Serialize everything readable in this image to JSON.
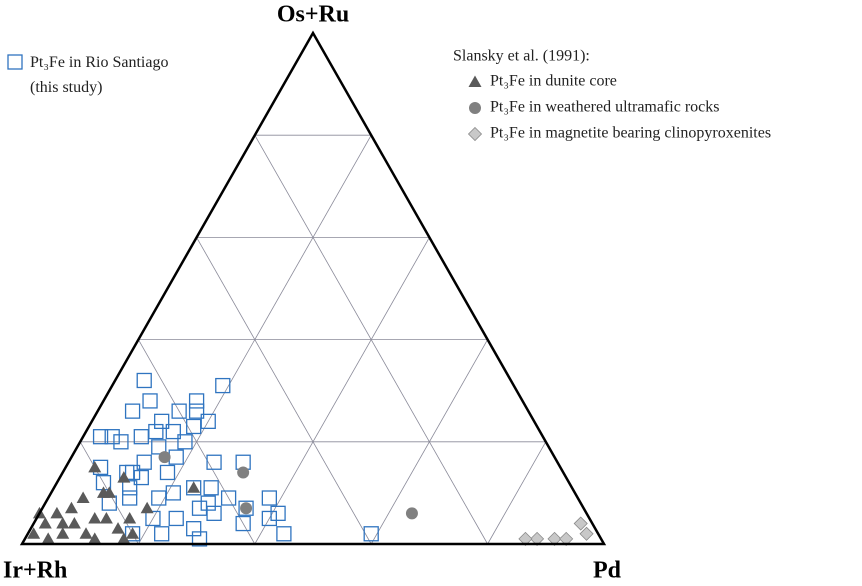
{
  "chart_data": {
    "type": "ternary",
    "vertices": {
      "top": "Os+Ru",
      "left": "Ir+Rh",
      "right": "Pd"
    },
    "lim": [
      0,
      100
    ],
    "grid_ticks": [
      20,
      40,
      60,
      80
    ],
    "grid": true,
    "legend_title": "Slansky et al. (1991):",
    "series": [
      {
        "name": "Pt₃Fe in Rio Santiago (this study)",
        "marker": "square",
        "color": "#2f74c0",
        "ir_rh": [
          50,
          63,
          56,
          57,
          60,
          64,
          68,
          56,
          63,
          66,
          69,
          73,
          76,
          74,
          59,
          67,
          59,
          54,
          65,
          74,
          79,
          75,
          73,
          68,
          53,
          65,
          62,
          64,
          66,
          58,
          53,
          55,
          60,
          72,
          77,
          81,
          75,
          71,
          69,
          80,
          75,
          69,
          54,
          39,
          60,
          64,
          80,
          76,
          69,
          71,
          64,
          62
        ],
        "os_ru": [
          31,
          32,
          28,
          26,
          26,
          28,
          26,
          24,
          22,
          22,
          21,
          20,
          21,
          21,
          23,
          19,
          16,
          16,
          17,
          14,
          15,
          14,
          13,
          14,
          9,
          11,
          11,
          6,
          7,
          7,
          6,
          5,
          4,
          9,
          9,
          8,
          5,
          5,
          3,
          2,
          2,
          1,
          2,
          2,
          9,
          8,
          12,
          11,
          10,
          16,
          24,
          20
        ],
        "pd": [
          19,
          5,
          16,
          17,
          14,
          8,
          6,
          20,
          15,
          12,
          10,
          7,
          3,
          5,
          18,
          14,
          25,
          30,
          18,
          12,
          6,
          11,
          14,
          18,
          38,
          24,
          27,
          30,
          27,
          35,
          41,
          40,
          36,
          19,
          14,
          11,
          20,
          24,
          28,
          18,
          23,
          30,
          44,
          59,
          31,
          28,
          8,
          13,
          21,
          13,
          12,
          18
        ]
      },
      {
        "name": "Pt₃Fe in dunite core",
        "marker": "triangle",
        "color": "#5a5a5a",
        "ir_rh": [
          80,
          76,
          65,
          94,
          91,
          88,
          85,
          81,
          80,
          94,
          91,
          89,
          85,
          83,
          97,
          95,
          92,
          88,
          82,
          79,
          80,
          75,
          87,
          82
        ],
        "os_ru": [
          15,
          13,
          11,
          6,
          6,
          7,
          9,
          10,
          10,
          4,
          4,
          4,
          5,
          5,
          2,
          1,
          2,
          2,
          3,
          5,
          2,
          7,
          1,
          1
        ],
        "pd": [
          5,
          11,
          24,
          0,
          3,
          5,
          6,
          9,
          10,
          2,
          5,
          7,
          10,
          12,
          1,
          4,
          6,
          10,
          15,
          16,
          18,
          18,
          12,
          17
        ]
      },
      {
        "name": "Pt₃Fe in weathered ultramafic rocks",
        "marker": "circle",
        "color": "#808080",
        "ir_rh": [
          55,
          67,
          58,
          30
        ],
        "os_ru": [
          14,
          17,
          7,
          6
        ],
        "pd": [
          31,
          16,
          35,
          64
        ]
      },
      {
        "name": "Pt₃Fe in magnetite bearing clinopyroxenites",
        "marker": "diamond",
        "color": "#c8c8c8",
        "ir_rh": [
          2,
          11,
          8,
          6,
          2,
          13
        ],
        "os_ru": [
          4,
          1,
          1,
          1,
          2,
          1
        ],
        "pd": [
          94,
          88,
          91,
          93,
          96,
          86
        ]
      }
    ]
  }
}
